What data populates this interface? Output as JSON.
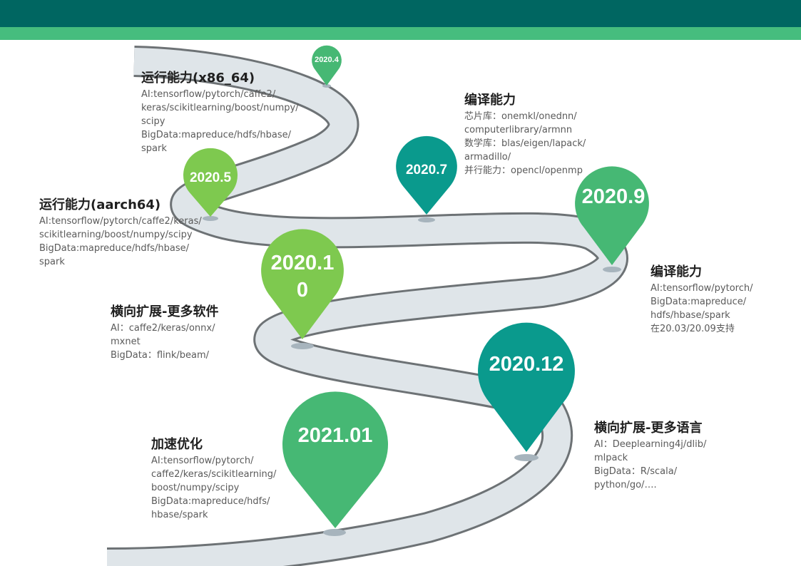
{
  "colors": {
    "band_dark": "#006661",
    "band_light": "#46bd7e",
    "road": "#dfe5e9",
    "road_edge": "#6d7275",
    "pin_light_green": "#7ec94f",
    "pin_green": "#46b874",
    "pin_teal": "#0a9a8d"
  },
  "milestones": [
    {
      "label": "2020.4"
    },
    {
      "label": "2020.5"
    },
    {
      "label": "2020.7"
    },
    {
      "label": "2020.9"
    },
    {
      "label": "2020.10"
    },
    {
      "label": "2020.12"
    },
    {
      "label": "2021.01"
    }
  ],
  "notes": [
    {
      "title": "运行能力(x86_64)",
      "lines": [
        "AI:tensorflow/pytorch/caffe2/",
        "keras/scikitlearning/boost/numpy/",
        "scipy",
        "BigData:mapreduce/hdfs/hbase/",
        "spark"
      ]
    },
    {
      "title": "运行能力(aarch64)",
      "lines": [
        "AI:tensorflow/pytorch/caffe2/keras/",
        "scikitlearning/boost/numpy/scipy",
        "BigData:mapreduce/hdfs/hbase/",
        "spark"
      ]
    },
    {
      "title": "编译能力",
      "lines": [
        "芯片库：onemkl/onednn/",
        "computerlibrary/armnn",
        "数学库：blas/eigen/lapack/",
        "armadillo/",
        "并行能力：opencl/openmp"
      ]
    },
    {
      "title": "编译能力",
      "lines": [
        "AI:tensorflow/pytorch/",
        "BigData:mapreduce/",
        "hdfs/hbase/spark",
        "在20.03/20.09支持"
      ]
    },
    {
      "title": "横向扩展-更多软件",
      "lines": [
        "AI：caffe2/keras/onnx/",
        "mxnet",
        "BigData：flink/beam/"
      ]
    },
    {
      "title": "横向扩展-更多语言",
      "lines": [
        "AI：Deeplearning4j/dlib/",
        "mlpack",
        "BigData：R/scala/",
        "python/go/…."
      ]
    },
    {
      "title": "加速优化",
      "lines": [
        "AI:tensorflow/pytorch/",
        "caffe2/keras/scikitlearning/",
        "boost/numpy/scipy",
        "BigData:mapreduce/hdfs/",
        "hbase/spark"
      ]
    }
  ]
}
